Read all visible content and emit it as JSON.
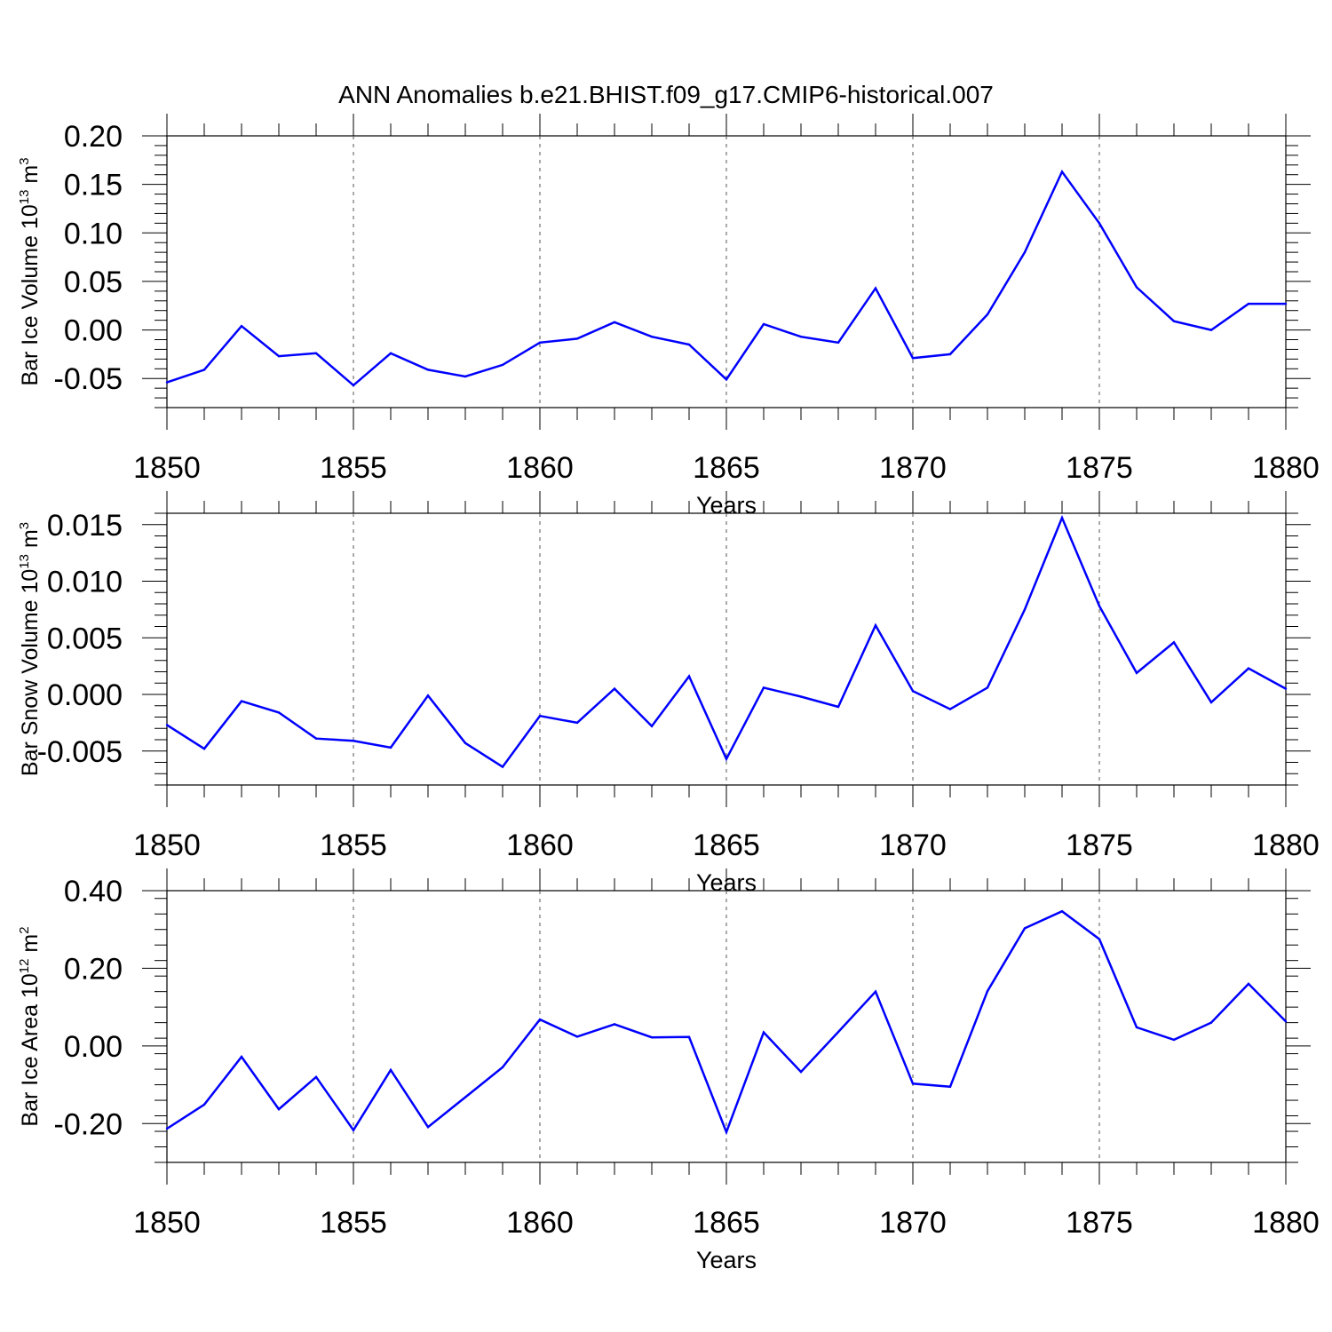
{
  "title": "ANN Anomalies b.e21.BHIST.f09_g17.CMIP6-historical.007",
  "line_color": "#0000ff",
  "chart_data": [
    {
      "type": "line",
      "title": "ANN Anomalies b.e21.BHIST.f09_g17.CMIP6-historical.007",
      "xlabel": "Years",
      "ylabel": {
        "text": "Bar Ice Volume 10",
        "exp": "13",
        "unit": " m",
        "unit_exp": "3"
      },
      "xlim": [
        1850,
        1880
      ],
      "ylim": [
        -0.08,
        0.2
      ],
      "yticks": [
        0.2,
        0.15,
        0.1,
        0.05,
        0.0,
        -0.05
      ],
      "ytick_labels": [
        "0.20",
        "0.15",
        "0.10",
        "0.05",
        "0.00",
        "-0.05"
      ],
      "xticks": [
        1850,
        1855,
        1860,
        1865,
        1870,
        1875,
        1880
      ],
      "xtick_labels": [
        "1850",
        "1855",
        "1860",
        "1865",
        "1870",
        "1875",
        "1880"
      ],
      "x": [
        1850,
        1851,
        1852,
        1853,
        1854,
        1855,
        1856,
        1857,
        1858,
        1859,
        1860,
        1861,
        1862,
        1863,
        1864,
        1865,
        1866,
        1867,
        1868,
        1869,
        1870,
        1871,
        1872,
        1873,
        1874,
        1875,
        1876,
        1877,
        1878,
        1879,
        1880
      ],
      "y": [
        -0.054,
        -0.041,
        0.004,
        -0.027,
        -0.024,
        -0.057,
        -0.024,
        -0.041,
        -0.048,
        -0.036,
        -0.013,
        -0.009,
        0.008,
        -0.007,
        -0.015,
        -0.051,
        0.006,
        -0.007,
        -0.013,
        0.043,
        -0.029,
        -0.025,
        0.016,
        0.08,
        0.163,
        0.11,
        0.044,
        0.009,
        0.0,
        0.027,
        0.027
      ]
    },
    {
      "type": "line",
      "xlabel": "Years",
      "ylabel": {
        "text": "Bar Snow Volume 10",
        "exp": "13",
        "unit": " m",
        "unit_exp": "3"
      },
      "xlim": [
        1850,
        1880
      ],
      "ylim": [
        -0.008,
        0.016
      ],
      "yticks": [
        0.015,
        0.01,
        0.005,
        0.0,
        -0.005
      ],
      "ytick_labels": [
        "0.015",
        "0.010",
        "0.005",
        "0.000",
        "-0.005"
      ],
      "xticks": [
        1850,
        1855,
        1860,
        1865,
        1870,
        1875,
        1880
      ],
      "xtick_labels": [
        "1850",
        "1855",
        "1860",
        "1865",
        "1870",
        "1875",
        "1880"
      ],
      "x": [
        1850,
        1851,
        1852,
        1853,
        1854,
        1855,
        1856,
        1857,
        1858,
        1859,
        1860,
        1861,
        1862,
        1863,
        1864,
        1865,
        1866,
        1867,
        1868,
        1869,
        1870,
        1871,
        1872,
        1873,
        1874,
        1875,
        1876,
        1877,
        1878,
        1879,
        1880
      ],
      "y": [
        -0.0027,
        -0.0048,
        -0.0006,
        -0.0016,
        -0.0039,
        -0.0041,
        -0.0047,
        -0.0001,
        -0.0043,
        -0.0064,
        -0.0019,
        -0.0025,
        0.0005,
        -0.0028,
        0.0016,
        -0.0057,
        0.0006,
        -0.0002,
        -0.0011,
        0.0061,
        0.0003,
        -0.0013,
        0.0006,
        0.0075,
        0.0156,
        0.0078,
        0.0019,
        0.0046,
        -0.0007,
        0.0023,
        0.0005
      ]
    },
    {
      "type": "line",
      "xlabel": "Years",
      "ylabel": {
        "text": "Bar Ice Area 10",
        "exp": "12",
        "unit": " m",
        "unit_exp": "2"
      },
      "xlim": [
        1850,
        1880
      ],
      "ylim": [
        -0.3,
        0.4
      ],
      "yticks": [
        0.4,
        0.2,
        0.0,
        -0.2
      ],
      "ytick_labels": [
        "0.40",
        "0.20",
        "0.00",
        "-0.20"
      ],
      "xticks": [
        1850,
        1855,
        1860,
        1865,
        1870,
        1875,
        1880
      ],
      "xtick_labels": [
        "1850",
        "1855",
        "1860",
        "1865",
        "1870",
        "1875",
        "1880"
      ],
      "x": [
        1850,
        1851,
        1852,
        1853,
        1854,
        1855,
        1856,
        1857,
        1858,
        1859,
        1860,
        1861,
        1862,
        1863,
        1864,
        1865,
        1866,
        1867,
        1868,
        1869,
        1870,
        1871,
        1872,
        1873,
        1874,
        1875,
        1876,
        1877,
        1878,
        1879,
        1880
      ],
      "y": [
        -0.213,
        -0.151,
        -0.028,
        -0.163,
        -0.08,
        -0.217,
        -0.062,
        -0.209,
        -0.132,
        -0.055,
        0.068,
        0.024,
        0.056,
        0.022,
        0.023,
        -0.222,
        0.035,
        -0.067,
        0.036,
        0.14,
        -0.097,
        -0.105,
        0.141,
        0.303,
        0.347,
        0.275,
        0.048,
        0.016,
        0.06,
        0.16,
        0.063
      ]
    }
  ]
}
